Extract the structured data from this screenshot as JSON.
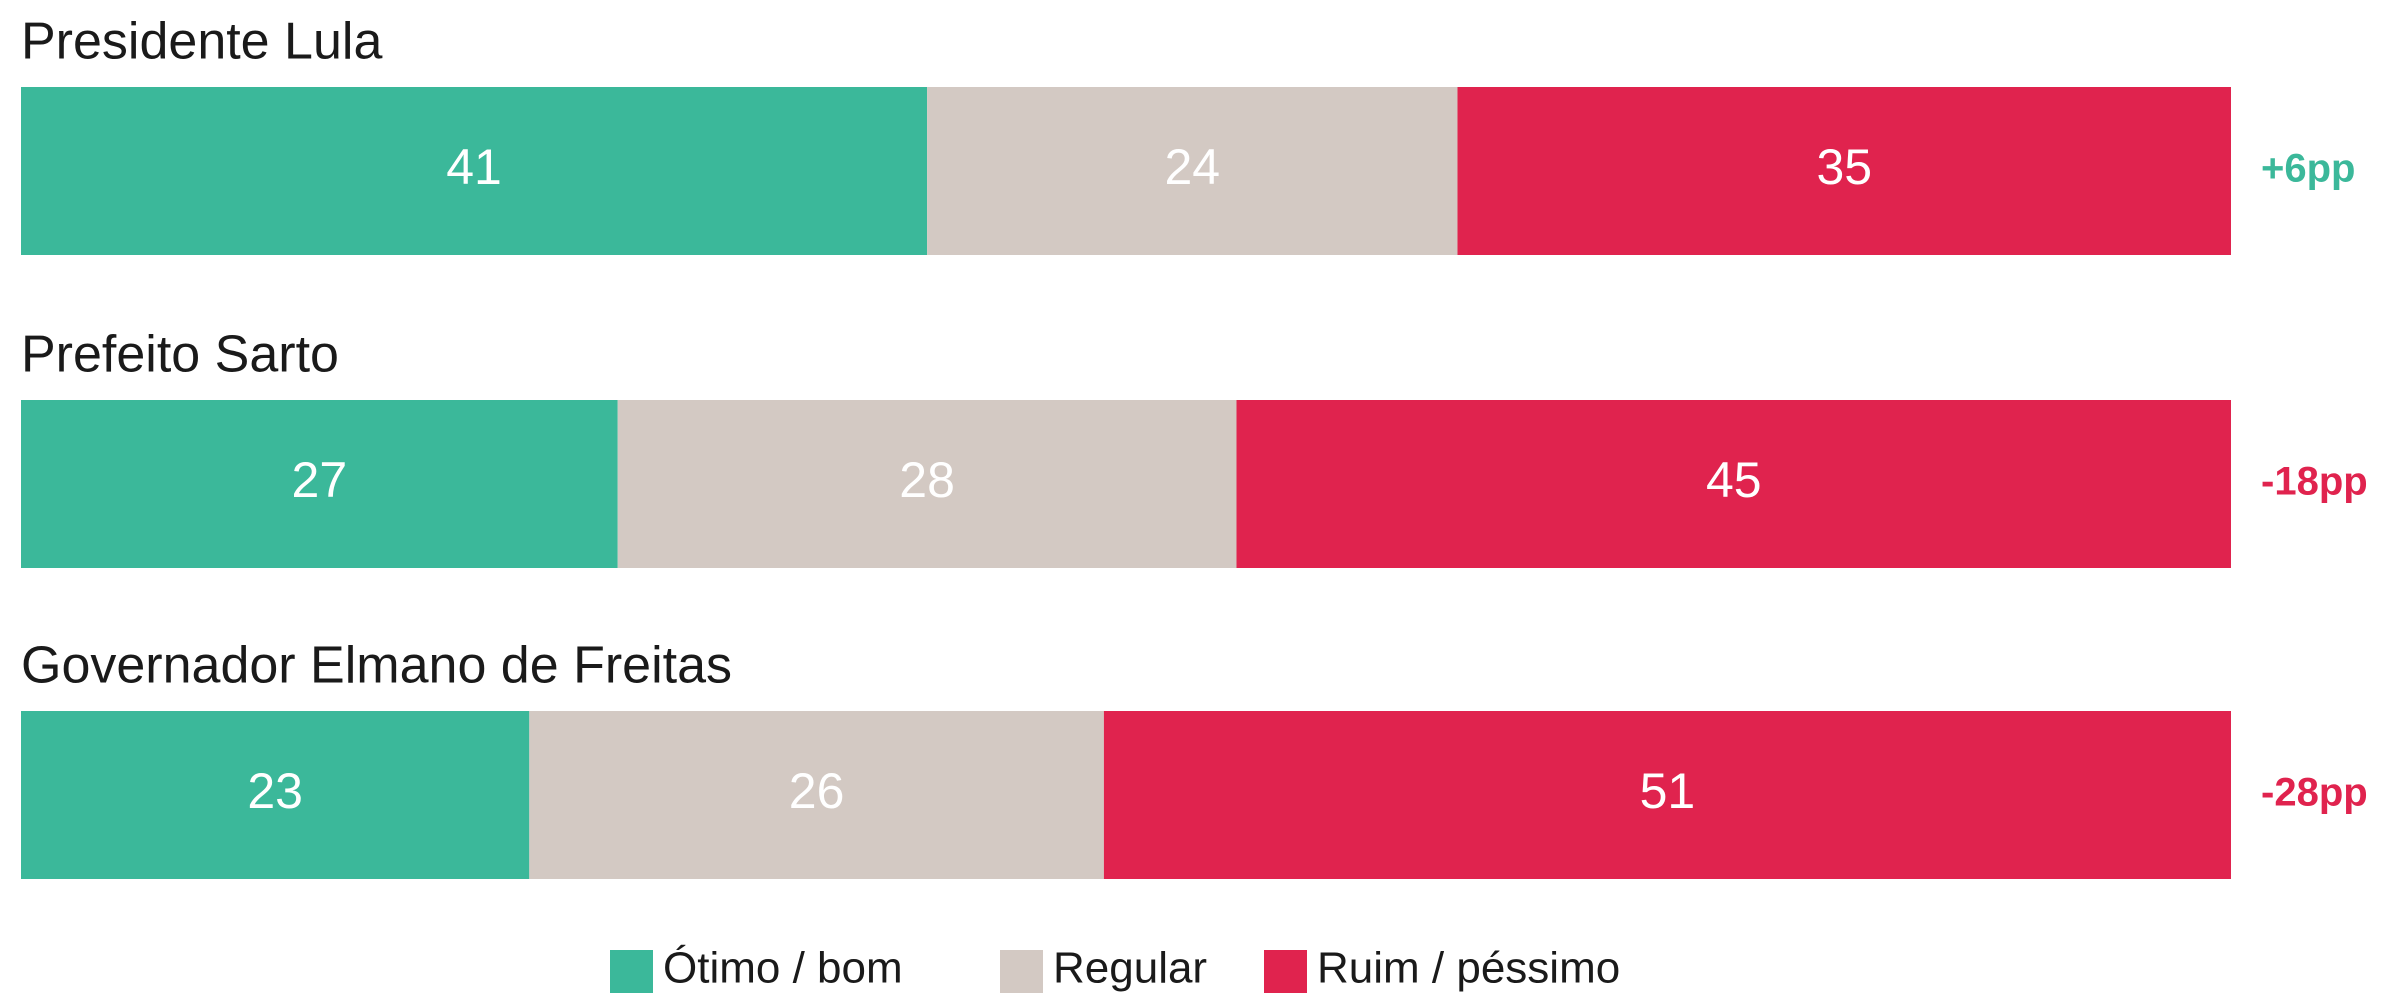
{
  "chart_data": {
    "type": "stacked-bar-horizontal",
    "categories": [
      "Presidente Lula",
      "Prefeito Sarto",
      "Governador Elmano de Freitas"
    ],
    "series": [
      {
        "name": "Ótimo / bom",
        "color": "#3bb89a",
        "values": [
          41,
          27,
          23
        ]
      },
      {
        "name": "Regular",
        "color": "#d3c9c3",
        "values": [
          24,
          28,
          26
        ]
      },
      {
        "name": "Ruim / péssimo",
        "color": "#e0234e",
        "values": [
          35,
          45,
          51
        ]
      }
    ],
    "annotations": [
      {
        "text": "+6pp",
        "color": "#3bb89a"
      },
      {
        "text": "-18pp",
        "color": "#e0234e"
      },
      {
        "text": "-28pp",
        "color": "#e0234e"
      }
    ]
  }
}
